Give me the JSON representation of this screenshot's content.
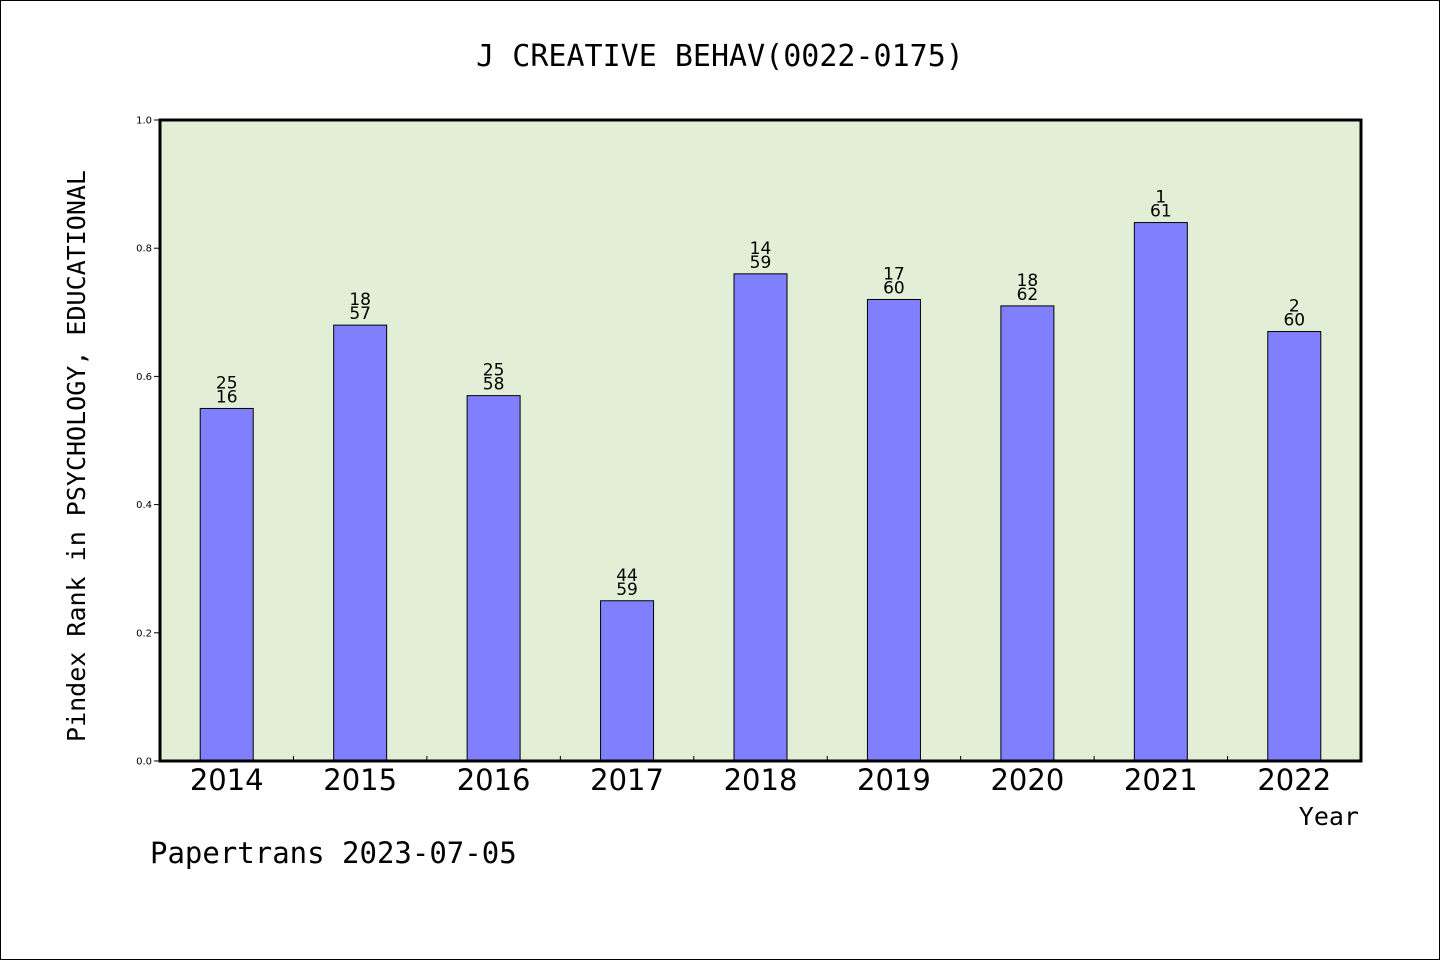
{
  "colors": {
    "plot_background": "#e2efd6",
    "bar_fill": "#8080ff",
    "bar_stroke": "#000000",
    "axis": "#000000"
  },
  "footer": "Papertrans 2023-07-05",
  "chart_data": {
    "type": "bar",
    "title": "J CREATIVE BEHAV(0022-0175)",
    "xlabel": "Year",
    "ylabel": "Pindex Rank in PSYCHOLOGY, EDUCATIONAL",
    "ylim": [
      0,
      1.0
    ],
    "yticks": [
      "0.0",
      "0.2",
      "0.4",
      "0.6",
      "0.8",
      "1.0"
    ],
    "grid": false,
    "categories": [
      "2014",
      "2015",
      "2016",
      "2017",
      "2018",
      "2019",
      "2020",
      "2021",
      "2022"
    ],
    "values": [
      0.55,
      0.68,
      0.57,
      0.25,
      0.76,
      0.72,
      0.71,
      0.84,
      0.67
    ],
    "labels_top": [
      "25",
      "18",
      "25",
      "44",
      "14",
      "17",
      "18",
      "1",
      "2"
    ],
    "labels_bottom": [
      "16",
      "57",
      "58",
      "59",
      "59",
      "60",
      "62",
      "61",
      "60"
    ]
  }
}
